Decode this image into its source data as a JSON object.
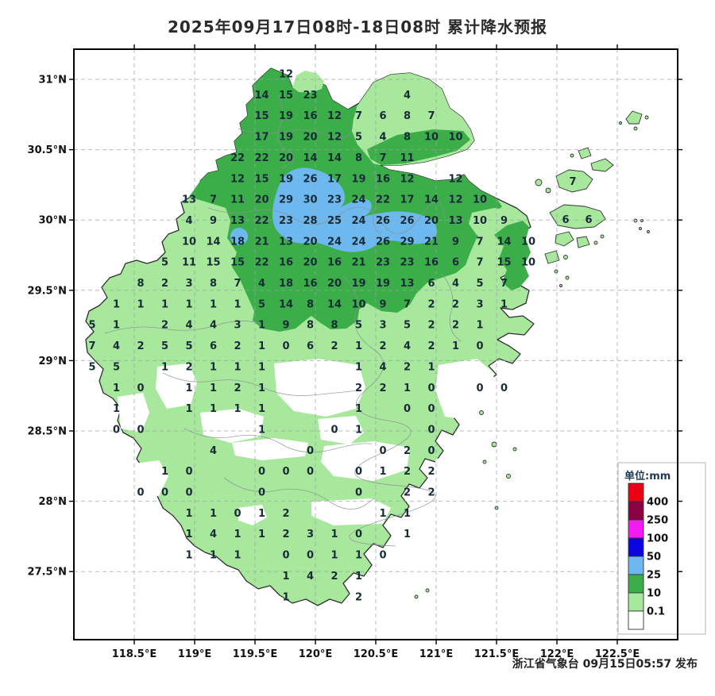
{
  "title": "2025年09月17日08时-18日08时 累计降水预报",
  "attribution": "浙江省气象台 09月15日05:57 发布",
  "axes": {
    "x_ticks": [
      "118.5°E",
      "119°E",
      "119.5°E",
      "120°E",
      "120.5°E",
      "121°E",
      "121.5°E",
      "122°E",
      "122.5°E"
    ],
    "y_ticks": [
      "31°N",
      "30.5°N",
      "30°N",
      "29.5°N",
      "29°N",
      "28.5°N",
      "28°N",
      "27.5°N"
    ]
  },
  "legend": {
    "title": "单位:mm",
    "entries": [
      {
        "color": "#ec0013",
        "label": "400"
      },
      {
        "color": "#8a0043",
        "label": "250"
      },
      {
        "color": "#f31af3",
        "label": "100"
      },
      {
        "color": "#0b04dc",
        "label": "50"
      },
      {
        "color": "#6db9ef",
        "label": "25"
      },
      {
        "color": "#3bae49",
        "label": "10"
      },
      {
        "color": "#a7e89c",
        "label": "0.1"
      },
      {
        "color": "#ffffff",
        "label": ""
      }
    ]
  },
  "colors": {
    "light_green": "#a7e89c",
    "medium_green": "#3bae49",
    "blue": "#6db9ef",
    "number": "#182c38"
  },
  "grid_values": [
    [
      0,
      8,
      12
    ],
    [
      1,
      7,
      14
    ],
    [
      1,
      8,
      15
    ],
    [
      1,
      9,
      23
    ],
    [
      1,
      13,
      4
    ],
    [
      2,
      7,
      15
    ],
    [
      2,
      8,
      19
    ],
    [
      2,
      9,
      16
    ],
    [
      2,
      10,
      12
    ],
    [
      2,
      11,
      7
    ],
    [
      2,
      12,
      6
    ],
    [
      2,
      13,
      8
    ],
    [
      2,
      14,
      7
    ],
    [
      3,
      7,
      17
    ],
    [
      3,
      8,
      19
    ],
    [
      3,
      9,
      20
    ],
    [
      3,
      10,
      12
    ],
    [
      3,
      11,
      5
    ],
    [
      3,
      12,
      4
    ],
    [
      3,
      13,
      8
    ],
    [
      3,
      14,
      10
    ],
    [
      3,
      15,
      10
    ],
    [
      4,
      6,
      22
    ],
    [
      4,
      7,
      22
    ],
    [
      4,
      8,
      20
    ],
    [
      4,
      9,
      14
    ],
    [
      4,
      10,
      14
    ],
    [
      4,
      11,
      8
    ],
    [
      4,
      12,
      7
    ],
    [
      4,
      13,
      11
    ],
    [
      5,
      6,
      12
    ],
    [
      5,
      7,
      15
    ],
    [
      5,
      8,
      19
    ],
    [
      5,
      9,
      26
    ],
    [
      5,
      10,
      17
    ],
    [
      5,
      11,
      19
    ],
    [
      5,
      12,
      16
    ],
    [
      5,
      13,
      12
    ],
    [
      5,
      15,
      12
    ],
    [
      6,
      4,
      13
    ],
    [
      6,
      5,
      7
    ],
    [
      6,
      6,
      11
    ],
    [
      6,
      7,
      20
    ],
    [
      6,
      8,
      29
    ],
    [
      6,
      9,
      30
    ],
    [
      6,
      10,
      23
    ],
    [
      6,
      11,
      24
    ],
    [
      6,
      12,
      22
    ],
    [
      6,
      13,
      17
    ],
    [
      6,
      14,
      14
    ],
    [
      6,
      15,
      12
    ],
    [
      6,
      16,
      10
    ],
    [
      7,
      4,
      4
    ],
    [
      7,
      5,
      9
    ],
    [
      7,
      6,
      13
    ],
    [
      7,
      7,
      22
    ],
    [
      7,
      8,
      23
    ],
    [
      7,
      9,
      28
    ],
    [
      7,
      10,
      25
    ],
    [
      7,
      11,
      24
    ],
    [
      7,
      12,
      26
    ],
    [
      7,
      13,
      26
    ],
    [
      7,
      14,
      20
    ],
    [
      7,
      15,
      13
    ],
    [
      7,
      16,
      10
    ],
    [
      7,
      17,
      9
    ],
    [
      8,
      4,
      10
    ],
    [
      8,
      5,
      14
    ],
    [
      8,
      6,
      18
    ],
    [
      8,
      7,
      21
    ],
    [
      8,
      8,
      13
    ],
    [
      8,
      9,
      20
    ],
    [
      8,
      10,
      24
    ],
    [
      8,
      11,
      24
    ],
    [
      8,
      12,
      26
    ],
    [
      8,
      13,
      29
    ],
    [
      8,
      14,
      21
    ],
    [
      8,
      15,
      9
    ],
    [
      8,
      16,
      7
    ],
    [
      8,
      17,
      14
    ],
    [
      8,
      18,
      10
    ],
    [
      9,
      3,
      5
    ],
    [
      9,
      4,
      11
    ],
    [
      9,
      5,
      15
    ],
    [
      9,
      6,
      15
    ],
    [
      9,
      7,
      22
    ],
    [
      9,
      8,
      16
    ],
    [
      9,
      9,
      20
    ],
    [
      9,
      10,
      16
    ],
    [
      9,
      11,
      21
    ],
    [
      9,
      12,
      23
    ],
    [
      9,
      13,
      23
    ],
    [
      9,
      14,
      16
    ],
    [
      9,
      15,
      6
    ],
    [
      9,
      16,
      7
    ],
    [
      9,
      17,
      15
    ],
    [
      9,
      18,
      10
    ],
    [
      10,
      2,
      8
    ],
    [
      10,
      3,
      2
    ],
    [
      10,
      4,
      3
    ],
    [
      10,
      5,
      8
    ],
    [
      10,
      6,
      7
    ],
    [
      10,
      7,
      4
    ],
    [
      10,
      8,
      18
    ],
    [
      10,
      9,
      16
    ],
    [
      10,
      10,
      20
    ],
    [
      10,
      11,
      19
    ],
    [
      10,
      12,
      19
    ],
    [
      10,
      13,
      13
    ],
    [
      10,
      14,
      6
    ],
    [
      10,
      15,
      4
    ],
    [
      10,
      16,
      5
    ],
    [
      10,
      17,
      7
    ],
    [
      11,
      1,
      1
    ],
    [
      11,
      2,
      1
    ],
    [
      11,
      3,
      1
    ],
    [
      11,
      4,
      1
    ],
    [
      11,
      5,
      1
    ],
    [
      11,
      6,
      1
    ],
    [
      11,
      7,
      5
    ],
    [
      11,
      8,
      14
    ],
    [
      11,
      9,
      8
    ],
    [
      11,
      10,
      14
    ],
    [
      11,
      11,
      10
    ],
    [
      11,
      12,
      9
    ],
    [
      11,
      13,
      7
    ],
    [
      11,
      14,
      2
    ],
    [
      11,
      15,
      2
    ],
    [
      11,
      16,
      3
    ],
    [
      11,
      17,
      1
    ],
    [
      12,
      0,
      5
    ],
    [
      12,
      1,
      1
    ],
    [
      12,
      3,
      2
    ],
    [
      12,
      4,
      4
    ],
    [
      12,
      5,
      4
    ],
    [
      12,
      6,
      3
    ],
    [
      12,
      7,
      1
    ],
    [
      12,
      8,
      9
    ],
    [
      12,
      9,
      8
    ],
    [
      12,
      10,
      8
    ],
    [
      12,
      11,
      5
    ],
    [
      12,
      12,
      3
    ],
    [
      12,
      13,
      5
    ],
    [
      12,
      14,
      2
    ],
    [
      12,
      15,
      2
    ],
    [
      12,
      16,
      1
    ],
    [
      13,
      0,
      7
    ],
    [
      13,
      1,
      4
    ],
    [
      13,
      2,
      2
    ],
    [
      13,
      3,
      5
    ],
    [
      13,
      4,
      5
    ],
    [
      13,
      5,
      6
    ],
    [
      13,
      6,
      2
    ],
    [
      13,
      7,
      1
    ],
    [
      13,
      8,
      0
    ],
    [
      13,
      9,
      6
    ],
    [
      13,
      10,
      2
    ],
    [
      13,
      11,
      1
    ],
    [
      13,
      12,
      2
    ],
    [
      13,
      13,
      4
    ],
    [
      13,
      14,
      2
    ],
    [
      13,
      15,
      1
    ],
    [
      13,
      16,
      0
    ],
    [
      14,
      0,
      5
    ],
    [
      14,
      1,
      5
    ],
    [
      14,
      3,
      1
    ],
    [
      14,
      4,
      2
    ],
    [
      14,
      5,
      1
    ],
    [
      14,
      6,
      1
    ],
    [
      14,
      7,
      1
    ],
    [
      14,
      11,
      1
    ],
    [
      14,
      12,
      4
    ],
    [
      14,
      13,
      2
    ],
    [
      14,
      14,
      1
    ],
    [
      15,
      1,
      1
    ],
    [
      15,
      2,
      0
    ],
    [
      15,
      4,
      1
    ],
    [
      15,
      5,
      1
    ],
    [
      15,
      6,
      2
    ],
    [
      15,
      7,
      1
    ],
    [
      15,
      11,
      2
    ],
    [
      15,
      12,
      2
    ],
    [
      15,
      13,
      1
    ],
    [
      15,
      14,
      0
    ],
    [
      15,
      16,
      0
    ],
    [
      15,
      17,
      0
    ],
    [
      16,
      1,
      1
    ],
    [
      16,
      4,
      1
    ],
    [
      16,
      5,
      1
    ],
    [
      16,
      6,
      1
    ],
    [
      16,
      7,
      1
    ],
    [
      16,
      11,
      1
    ],
    [
      16,
      13,
      0
    ],
    [
      16,
      14,
      0
    ],
    [
      17,
      1,
      0
    ],
    [
      17,
      2,
      0
    ],
    [
      17,
      7,
      1
    ],
    [
      17,
      10,
      0
    ],
    [
      17,
      11,
      1
    ],
    [
      17,
      14,
      0
    ],
    [
      18,
      5,
      4
    ],
    [
      18,
      9,
      0
    ],
    [
      18,
      12,
      0
    ],
    [
      18,
      13,
      2
    ],
    [
      18,
      14,
      0
    ],
    [
      19,
      3,
      1
    ],
    [
      19,
      4,
      0
    ],
    [
      19,
      7,
      0
    ],
    [
      19,
      8,
      0
    ],
    [
      19,
      9,
      0
    ],
    [
      19,
      11,
      0
    ],
    [
      19,
      12,
      1
    ],
    [
      19,
      13,
      2
    ],
    [
      19,
      14,
      2
    ],
    [
      20,
      2,
      0
    ],
    [
      20,
      3,
      0
    ],
    [
      20,
      4,
      0
    ],
    [
      20,
      7,
      0
    ],
    [
      20,
      11,
      0
    ],
    [
      20,
      13,
      2
    ],
    [
      20,
      14,
      2
    ],
    [
      21,
      4,
      1
    ],
    [
      21,
      5,
      1
    ],
    [
      21,
      6,
      0
    ],
    [
      21,
      7,
      1
    ],
    [
      21,
      8,
      2
    ],
    [
      21,
      12,
      1
    ],
    [
      21,
      13,
      1
    ],
    [
      22,
      4,
      1
    ],
    [
      22,
      5,
      4
    ],
    [
      22,
      6,
      1
    ],
    [
      22,
      7,
      1
    ],
    [
      22,
      8,
      2
    ],
    [
      22,
      9,
      3
    ],
    [
      22,
      10,
      1
    ],
    [
      22,
      11,
      0
    ],
    [
      22,
      13,
      1
    ],
    [
      23,
      4,
      1
    ],
    [
      23,
      5,
      1
    ],
    [
      23,
      6,
      1
    ],
    [
      23,
      8,
      0
    ],
    [
      23,
      9,
      0
    ],
    [
      23,
      10,
      1
    ],
    [
      23,
      11,
      1
    ],
    [
      23,
      12,
      0
    ],
    [
      24,
      8,
      1
    ],
    [
      24,
      9,
      4
    ],
    [
      24,
      10,
      2
    ],
    [
      24,
      11,
      1
    ],
    [
      25,
      8,
      1
    ],
    [
      25,
      11,
      2
    ]
  ],
  "island_values": [
    {
      "x": 721,
      "y": 233,
      "v": 7
    },
    {
      "x": 712,
      "y": 281,
      "v": 6
    },
    {
      "x": 741,
      "y": 281,
      "v": 6
    }
  ]
}
